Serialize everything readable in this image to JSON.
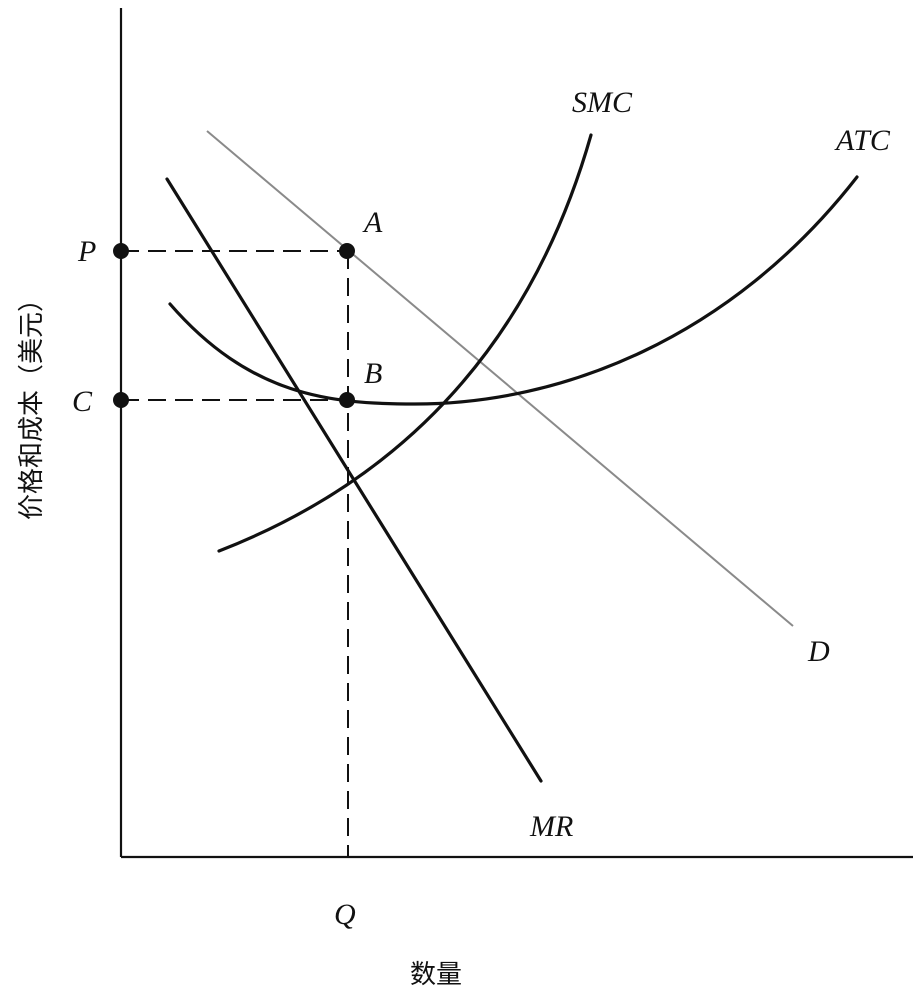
{
  "axes": {
    "y_label": "价格和成本（美元）",
    "x_label": "数量"
  },
  "curves": {
    "smc": "SMC",
    "atc": "ATC",
    "demand": "D",
    "mr": "MR"
  },
  "points": {
    "a": "A",
    "b": "B"
  },
  "ticks": {
    "p": "P",
    "c": "C",
    "q": "Q"
  },
  "colors": {
    "ink": "#111111",
    "demand_line": "#8a8a8a"
  }
}
